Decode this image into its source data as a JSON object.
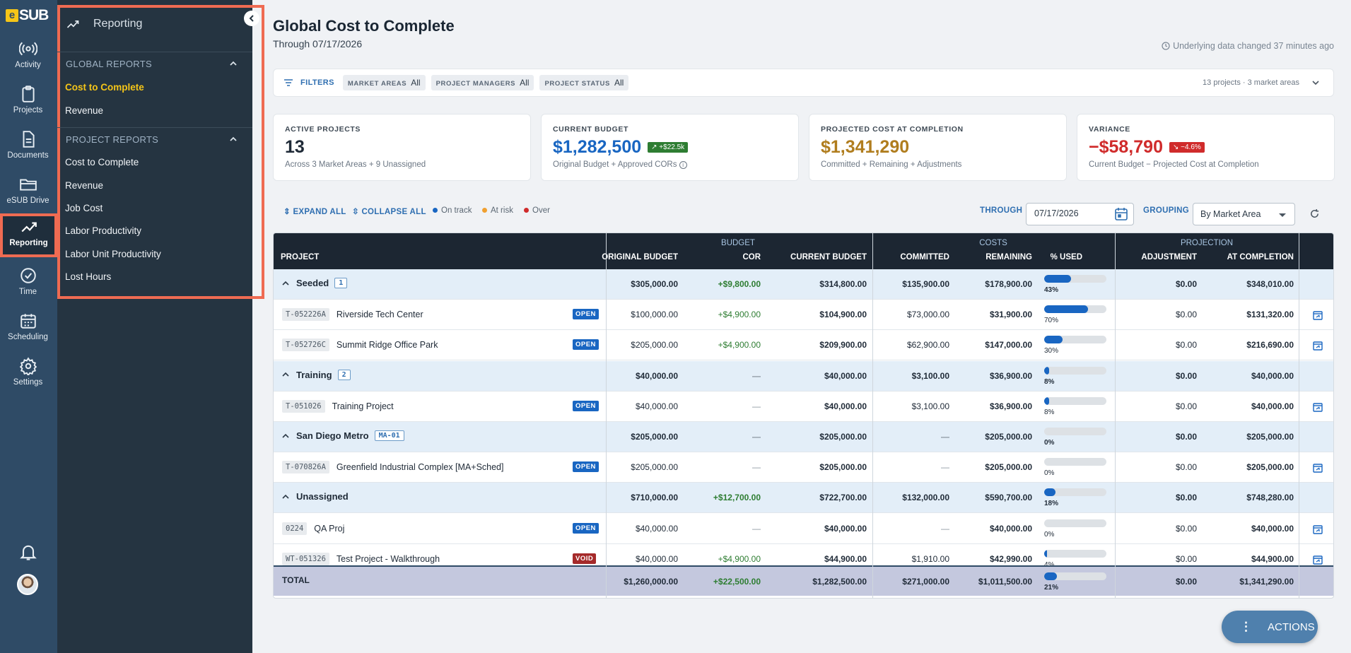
{
  "app": {
    "logo_letter": "e",
    "logo_text": "SUB"
  },
  "rail": [
    {
      "label": "Activity",
      "icon": "activity-icon"
    },
    {
      "label": "Projects",
      "icon": "clipboard-icon"
    },
    {
      "label": "Documents",
      "icon": "document-icon"
    },
    {
      "label": "eSUB Drive",
      "icon": "folder-icon"
    },
    {
      "label": "Reporting",
      "icon": "trend-icon",
      "active": true
    },
    {
      "label": "Time",
      "icon": "clock-icon"
    },
    {
      "label": "Scheduling",
      "icon": "calendar-icon"
    },
    {
      "label": "Settings",
      "icon": "gear-icon"
    }
  ],
  "subnav": {
    "title": "Reporting",
    "global_section": "GLOBAL REPORTS",
    "global_items": [
      "Cost to Complete",
      "Revenue"
    ],
    "project_section": "PROJECT REPORTS",
    "project_items": [
      "Cost to Complete",
      "Revenue",
      "Job Cost",
      "Labor Productivity",
      "Labor Unit Productivity",
      "Lost Hours"
    ]
  },
  "page": {
    "title": "Global Cost to Complete",
    "subtitle": "Through 07/17/2026",
    "updated": "Underlying data changed 37 minutes ago"
  },
  "filters": {
    "label": "FILTERS",
    "chips": [
      {
        "key": "MARKET AREAS",
        "value": "All"
      },
      {
        "key": "PROJECT MANAGERS",
        "value": "All"
      },
      {
        "key": "PROJECT STATUS",
        "value": "All"
      }
    ],
    "summary": "13 projects · 3 market areas"
  },
  "kpis": [
    {
      "label": "ACTIVE PROJECTS",
      "value": "13",
      "badge": "",
      "sub": "Across 3 Market Areas + 9 Unassigned",
      "color": "#1f2a37"
    },
    {
      "label": "CURRENT BUDGET",
      "value": "$1,282,500",
      "badge": "+$22.5k",
      "sub": "Original Budget + Approved CORs",
      "color": "#1966c2",
      "badge_color": "#2e7d32"
    },
    {
      "label": "PROJECTED COST AT COMPLETION",
      "value": "$1,341,290",
      "badge": "",
      "sub": "Committed + Remaining + Adjustments",
      "color": "#b07d1e"
    },
    {
      "label": "VARIANCE",
      "value": "−$58,790",
      "badge": "−4.6%",
      "sub": "Current Budget − Projected Cost at Completion",
      "color": "#d02b2b",
      "badge_color": "#d02b2b"
    }
  ],
  "toolbar": {
    "expand": "EXPAND ALL",
    "collapse": "COLLAPSE ALL",
    "legend": [
      {
        "label": "On track",
        "color": "#1966c2"
      },
      {
        "label": "At risk",
        "color": "#f0a030"
      },
      {
        "label": "Over",
        "color": "#d02b2b"
      }
    ],
    "through_label": "THROUGH",
    "through_value": "07/17/2026",
    "grouping_label": "GROUPING",
    "grouping_value": "By Market Area"
  },
  "table": {
    "groups": {
      "budget": "BUDGET",
      "costs": "COSTS",
      "projection": "PROJECTION"
    },
    "headers": {
      "project": "PROJECT",
      "original": "ORIGINAL BUDGET",
      "cor": "COR",
      "current": "CURRENT BUDGET",
      "committed": "COMMITTED",
      "remaining": "REMAINING",
      "pct": "% USED",
      "adjustment": "ADJUSTMENT",
      "completion": "AT COMPLETION"
    },
    "rows": [
      {
        "type": "group",
        "name": "Seeded",
        "badge": "1",
        "original": "$305,000.00",
        "cor": "+$9,800.00",
        "current": "$314,800.00",
        "committed": "$135,900.00",
        "remaining": "$178,900.00",
        "pct": "43%",
        "pct_value": 43,
        "adjustment": "$0.00",
        "completion": "$348,010.00"
      },
      {
        "type": "project",
        "code": "T-052226A",
        "name": "Riverside Tech Center",
        "status": "OPEN",
        "original": "$100,000.00",
        "cor": "+$4,900.00",
        "current": "$104,900.00",
        "committed": "$73,000.00",
        "remaining": "$31,900.00",
        "pct": "70%",
        "pct_value": 70,
        "adjustment": "$0.00",
        "completion": "$131,320.00"
      },
      {
        "type": "project",
        "code": "T-052726C",
        "name": "Summit Ridge Office Park",
        "status": "OPEN",
        "original": "$205,000.00",
        "cor": "+$4,900.00",
        "current": "$209,900.00",
        "committed": "$62,900.00",
        "remaining": "$147,000.00",
        "pct": "30%",
        "pct_value": 30,
        "adjustment": "$0.00",
        "completion": "$216,690.00"
      },
      {
        "type": "group",
        "name": "Training",
        "badge": "2",
        "original": "$40,000.00",
        "cor": "—",
        "current": "$40,000.00",
        "committed": "$3,100.00",
        "remaining": "$36,900.00",
        "pct": "8%",
        "pct_value": 8,
        "adjustment": "$0.00",
        "completion": "$40,000.00"
      },
      {
        "type": "project",
        "code": "T-051026",
        "name": "Training Project",
        "status": "OPEN",
        "original": "$40,000.00",
        "cor": "—",
        "current": "$40,000.00",
        "committed": "$3,100.00",
        "remaining": "$36,900.00",
        "pct": "8%",
        "pct_value": 8,
        "adjustment": "$0.00",
        "completion": "$40,000.00"
      },
      {
        "type": "group",
        "name": "San Diego Metro",
        "badge": "MA-01",
        "original": "$205,000.00",
        "cor": "—",
        "current": "$205,000.00",
        "committed": "—",
        "remaining": "$205,000.00",
        "pct": "0%",
        "pct_value": 0,
        "adjustment": "$0.00",
        "completion": "$205,000.00"
      },
      {
        "type": "project",
        "code": "T-070826A",
        "name": "Greenfield Industrial Complex [MA+Sched]",
        "status": "OPEN",
        "original": "$205,000.00",
        "cor": "—",
        "current": "$205,000.00",
        "committed": "—",
        "remaining": "$205,000.00",
        "pct": "0%",
        "pct_value": 0,
        "adjustment": "$0.00",
        "completion": "$205,000.00"
      },
      {
        "type": "group",
        "name": "Unassigned",
        "badge": "",
        "original": "$710,000.00",
        "cor": "+$12,700.00",
        "current": "$722,700.00",
        "committed": "$132,000.00",
        "remaining": "$590,700.00",
        "pct": "18%",
        "pct_value": 18,
        "adjustment": "$0.00",
        "completion": "$748,280.00"
      },
      {
        "type": "project",
        "code": "0224",
        "name": "QA Proj",
        "status": "OPEN",
        "original": "$40,000.00",
        "cor": "—",
        "current": "$40,000.00",
        "committed": "—",
        "remaining": "$40,000.00",
        "pct": "0%",
        "pct_value": 0,
        "adjustment": "$0.00",
        "completion": "$40,000.00"
      },
      {
        "type": "project",
        "code": "WT-051326",
        "name": "Test Project - Walkthrough",
        "status": "VOID",
        "original": "$40,000.00",
        "cor": "+$4,900.00",
        "current": "$44,900.00",
        "committed": "$1,910.00",
        "remaining": "$42,990.00",
        "pct": "4%",
        "pct_value": 4,
        "adjustment": "$0.00",
        "completion": "$44,900.00"
      }
    ],
    "total": {
      "name": "TOTAL",
      "original": "$1,260,000.00",
      "cor": "+$22,500.00",
      "current": "$1,282,500.00",
      "committed": "$271,000.00",
      "remaining": "$1,011,500.00",
      "pct": "21%",
      "pct_value": 21,
      "adjustment": "$0.00",
      "completion": "$1,341,290.00"
    }
  },
  "actions_label": "ACTIONS"
}
